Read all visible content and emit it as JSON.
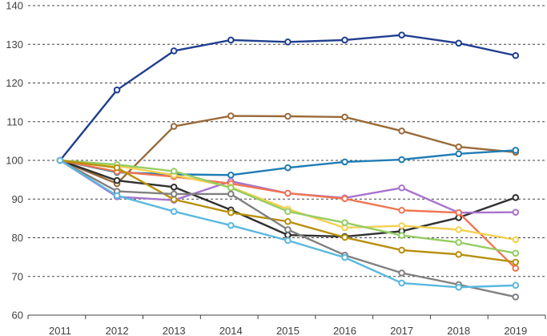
{
  "chart_data": {
    "type": "line",
    "title": "",
    "xlabel": "",
    "ylabel": "",
    "x": [
      "2011",
      "2012",
      "2013",
      "2014",
      "2015",
      "2016",
      "2017",
      "2018",
      "2019"
    ],
    "ylim": [
      60,
      140
    ],
    "yticks": [
      60,
      70,
      80,
      90,
      100,
      110,
      120,
      130,
      140
    ],
    "yticks_labels": [
      "60",
      "70",
      "80",
      "90",
      "100",
      "110",
      "120",
      "130",
      "140"
    ],
    "grid": "horizontal dashed",
    "legend": "none",
    "series": [
      {
        "color": "#1f3f8f",
        "values": [
          100,
          118.2,
          128.3,
          131.1,
          130.6,
          131.1,
          132.4,
          130.3,
          127.1
        ]
      },
      {
        "color": "#9a6a3a",
        "values": [
          100,
          94.0,
          108.8,
          111.5,
          111.4,
          111.2,
          107.6,
          103.5,
          102.1
        ]
      },
      {
        "color": "#1f7cb5",
        "values": [
          100,
          96.9,
          96.4,
          96.2,
          98.1,
          99.6,
          100.2,
          101.7,
          102.6
        ]
      },
      {
        "color": "#303030",
        "values": [
          100,
          94.8,
          93.1,
          87.2,
          80.7,
          80.3,
          81.7,
          85.2,
          90.4
        ]
      },
      {
        "color": "#a873cf",
        "values": [
          100,
          90.6,
          89.7,
          94.6,
          91.5,
          90.3,
          92.9,
          86.5,
          86.6
        ]
      },
      {
        "color": "#f07552",
        "values": [
          100,
          97.1,
          95.8,
          94.0,
          91.5,
          90.1,
          87.1,
          86.5,
          72.1
        ]
      },
      {
        "color": "#f4d050",
        "values": [
          100,
          98.6,
          96.2,
          93.1,
          87.4,
          82.6,
          83.1,
          82.1,
          79.5
        ]
      },
      {
        "color": "#96cc64",
        "values": [
          100,
          98.9,
          97.2,
          92.9,
          86.8,
          83.9,
          80.6,
          78.8,
          76.0
        ]
      },
      {
        "color": "#b8900c",
        "values": [
          100,
          98.1,
          89.9,
          86.5,
          84.2,
          80.1,
          76.8,
          75.7,
          73.7
        ]
      },
      {
        "color": "#808080",
        "values": [
          100,
          92.0,
          91.3,
          91.3,
          82.1,
          75.5,
          70.9,
          67.9,
          64.7
        ]
      },
      {
        "color": "#5ab8de",
        "values": [
          100,
          90.9,
          86.8,
          83.2,
          79.3,
          74.9,
          68.3,
          67.2,
          67.7
        ]
      }
    ]
  }
}
